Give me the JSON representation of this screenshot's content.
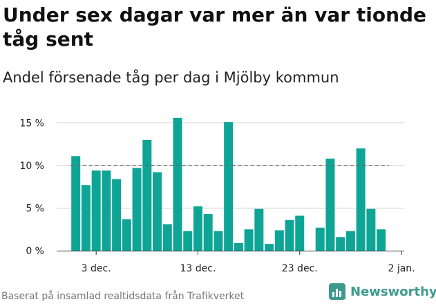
{
  "header": {
    "title": "Under sex dagar var mer än var tionde tåg sent",
    "subtitle": "Andel försenade tåg per dag i Mjölby kommun"
  },
  "footer": {
    "source": "Baserat på insamlad realtidsdata från Trafikverket",
    "brand": "Newsworthy"
  },
  "colors": {
    "bar": "#0fa596",
    "reference_line": "#666666",
    "gridline": "#cccccc",
    "brand": "#3e9a8e"
  },
  "chart_data": {
    "type": "bar",
    "title": "Under sex dagar var mer än var tionde tåg sent",
    "subtitle": "Andel försenade tåg per dag i Mjölby kommun",
    "x_start": "2020-12-01",
    "x_end": "2021-01-02",
    "x": [
      "2020-12-01",
      "2020-12-02",
      "2020-12-03",
      "2020-12-04",
      "2020-12-05",
      "2020-12-06",
      "2020-12-07",
      "2020-12-08",
      "2020-12-09",
      "2020-12-10",
      "2020-12-11",
      "2020-12-12",
      "2020-12-13",
      "2020-12-14",
      "2020-12-15",
      "2020-12-16",
      "2020-12-17",
      "2020-12-18",
      "2020-12-19",
      "2020-12-20",
      "2020-12-21",
      "2020-12-22",
      "2020-12-23",
      "2020-12-24",
      "2020-12-25",
      "2020-12-26",
      "2020-12-27",
      "2020-12-28",
      "2020-12-29",
      "2020-12-30",
      "2020-12-31"
    ],
    "values": [
      11.1,
      7.7,
      9.4,
      9.4,
      8.4,
      3.7,
      9.7,
      13.0,
      9.2,
      3.1,
      15.6,
      2.3,
      5.2,
      4.3,
      2.3,
      15.1,
      0.9,
      2.5,
      4.9,
      0.8,
      2.4,
      3.6,
      4.1,
      null,
      2.7,
      10.8,
      1.6,
      2.3,
      12.0,
      4.9,
      2.5
    ],
    "reference_line": 10,
    "x_ticks": [
      {
        "date": "2020-12-03",
        "label": "3 dec."
      },
      {
        "date": "2020-12-13",
        "label": "13 dec."
      },
      {
        "date": "2020-12-23",
        "label": "23 dec."
      },
      {
        "date": "2021-01-02",
        "label": "2 jan."
      }
    ],
    "y_ticks": [
      {
        "value": 0,
        "label": "0 %"
      },
      {
        "value": 5,
        "label": "5 %"
      },
      {
        "value": 10,
        "label": "10 %"
      },
      {
        "value": 15,
        "label": "15 %"
      }
    ],
    "ylim": [
      0,
      15.6
    ],
    "grid": true,
    "unit": "%"
  }
}
